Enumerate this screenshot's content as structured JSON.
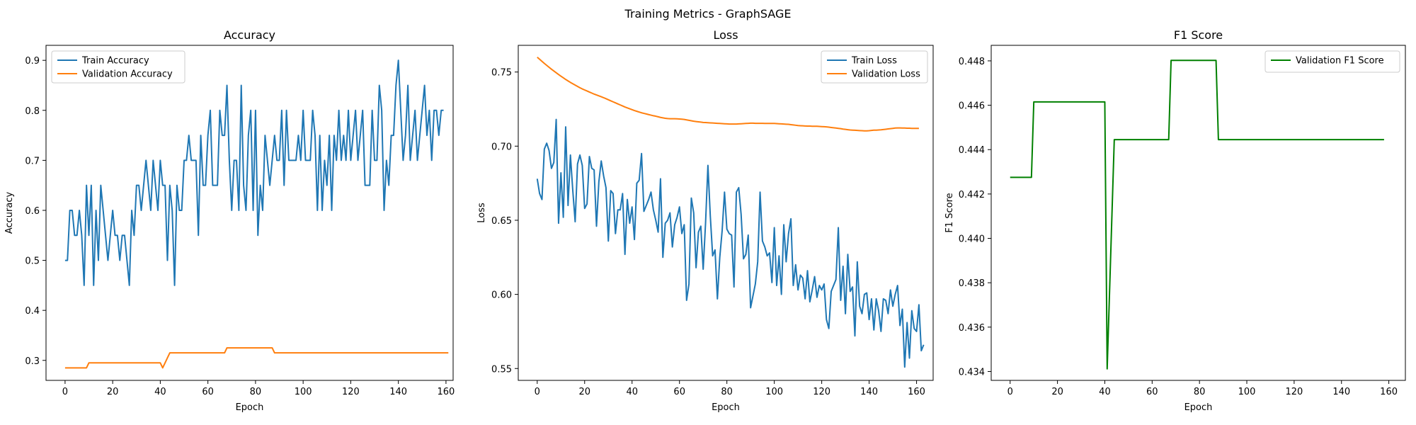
{
  "figure": {
    "suptitle": "Training Metrics - GraphSAGE"
  },
  "chart_data": [
    {
      "type": "line",
      "title": "Accuracy",
      "xlabel": "Epoch",
      "ylabel": "Accuracy",
      "xlim": [
        -8,
        163
      ],
      "ylim": [
        0.26,
        0.93
      ],
      "xticks": [
        0,
        20,
        40,
        60,
        80,
        100,
        120,
        140,
        160
      ],
      "yticks": [
        0.3,
        0.4,
        0.5,
        0.6,
        0.7,
        0.8,
        0.9
      ],
      "ytick_decimals": 1,
      "legend": "top-left",
      "grid": false,
      "series": [
        {
          "name": "Train Accuracy",
          "color": "#1f77b4",
          "values": [
            0.5,
            0.5,
            0.6,
            0.6,
            0.55,
            0.55,
            0.6,
            0.55,
            0.45,
            0.65,
            0.55,
            0.65,
            0.45,
            0.6,
            0.5,
            0.65,
            0.6,
            0.55,
            0.5,
            0.55,
            0.6,
            0.55,
            0.55,
            0.5,
            0.55,
            0.55,
            0.5,
            0.45,
            0.6,
            0.55,
            0.65,
            0.65,
            0.6,
            0.65,
            0.7,
            0.65,
            0.6,
            0.7,
            0.65,
            0.6,
            0.7,
            0.65,
            0.65,
            0.5,
            0.65,
            0.6,
            0.45,
            0.65,
            0.6,
            0.6,
            0.7,
            0.7,
            0.75,
            0.7,
            0.7,
            0.7,
            0.55,
            0.75,
            0.65,
            0.65,
            0.75,
            0.8,
            0.65,
            0.65,
            0.65,
            0.8,
            0.75,
            0.75,
            0.85,
            0.7,
            0.6,
            0.7,
            0.7,
            0.6,
            0.85,
            0.65,
            0.6,
            0.75,
            0.8,
            0.6,
            0.8,
            0.55,
            0.65,
            0.6,
            0.75,
            0.7,
            0.65,
            0.7,
            0.75,
            0.7,
            0.7,
            0.8,
            0.65,
            0.8,
            0.7,
            0.7,
            0.7,
            0.7,
            0.75,
            0.7,
            0.8,
            0.7,
            0.7,
            0.7,
            0.8,
            0.75,
            0.6,
            0.75,
            0.6,
            0.7,
            0.65,
            0.75,
            0.6,
            0.75,
            0.7,
            0.8,
            0.7,
            0.75,
            0.7,
            0.8,
            0.7,
            0.75,
            0.8,
            0.7,
            0.75,
            0.8,
            0.65,
            0.65,
            0.65,
            0.8,
            0.7,
            0.7,
            0.85,
            0.8,
            0.6,
            0.7,
            0.65,
            0.75,
            0.75,
            0.85,
            0.9,
            0.8,
            0.7,
            0.75,
            0.85,
            0.7,
            0.75,
            0.8,
            0.7,
            0.75,
            0.8,
            0.85,
            0.75,
            0.8,
            0.7,
            0.8,
            0.8,
            0.75,
            0.8,
            0.8
          ]
        },
        {
          "name": "Validation Accuracy",
          "color": "#ff7f0e",
          "values": [
            0.285,
            0.285,
            0.285,
            0.285,
            0.285,
            0.285,
            0.285,
            0.285,
            0.285,
            0.285,
            0.295,
            0.295,
            0.295,
            0.295,
            0.295,
            0.295,
            0.295,
            0.295,
            0.295,
            0.295,
            0.295,
            0.295,
            0.295,
            0.295,
            0.295,
            0.295,
            0.295,
            0.295,
            0.295,
            0.295,
            0.295,
            0.295,
            0.295,
            0.295,
            0.295,
            0.295,
            0.295,
            0.295,
            0.295,
            0.295,
            0.295,
            0.285,
            0.295,
            0.305,
            0.315,
            0.315,
            0.315,
            0.315,
            0.315,
            0.315,
            0.315,
            0.315,
            0.315,
            0.315,
            0.315,
            0.315,
            0.315,
            0.315,
            0.315,
            0.315,
            0.315,
            0.315,
            0.315,
            0.315,
            0.315,
            0.315,
            0.315,
            0.315,
            0.325,
            0.325,
            0.325,
            0.325,
            0.325,
            0.325,
            0.325,
            0.325,
            0.325,
            0.325,
            0.325,
            0.325,
            0.325,
            0.325,
            0.325,
            0.325,
            0.325,
            0.325,
            0.325,
            0.325,
            0.315,
            0.315,
            0.315,
            0.315,
            0.315,
            0.315,
            0.315,
            0.315,
            0.315,
            0.315,
            0.315,
            0.315,
            0.315,
            0.315,
            0.315,
            0.315,
            0.315,
            0.315,
            0.315,
            0.315,
            0.315,
            0.315,
            0.315,
            0.315,
            0.315,
            0.315,
            0.315,
            0.315,
            0.315,
            0.315,
            0.315,
            0.315,
            0.315,
            0.315,
            0.315,
            0.315,
            0.315,
            0.315,
            0.315,
            0.315,
            0.315,
            0.315,
            0.315,
            0.315,
            0.315,
            0.315,
            0.315,
            0.315,
            0.315,
            0.315,
            0.315,
            0.315,
            0.315,
            0.315,
            0.315,
            0.315,
            0.315,
            0.315,
            0.315,
            0.315,
            0.315,
            0.315,
            0.315,
            0.315,
            0.315,
            0.315,
            0.315,
            0.315,
            0.315,
            0.315,
            0.315,
            0.315,
            0.315,
            0.315
          ]
        }
      ]
    },
    {
      "type": "line",
      "title": "Loss",
      "xlabel": "Epoch",
      "ylabel": "Loss",
      "xlim": [
        -8,
        167
      ],
      "ylim": [
        0.542,
        0.768
      ],
      "xticks": [
        0,
        20,
        40,
        60,
        80,
        100,
        120,
        140,
        160
      ],
      "yticks": [
        0.55,
        0.6,
        0.65,
        0.7,
        0.75
      ],
      "ytick_decimals": 2,
      "legend": "top-right",
      "grid": false,
      "series": [
        {
          "name": "Train Loss",
          "color": "#1f77b4",
          "values": [
            0.678,
            0.668,
            0.664,
            0.698,
            0.702,
            0.697,
            0.685,
            0.689,
            0.718,
            0.648,
            0.682,
            0.652,
            0.713,
            0.66,
            0.694,
            0.67,
            0.649,
            0.688,
            0.694,
            0.687,
            0.658,
            0.661,
            0.693,
            0.685,
            0.684,
            0.646,
            0.676,
            0.69,
            0.68,
            0.672,
            0.636,
            0.67,
            0.668,
            0.641,
            0.657,
            0.657,
            0.668,
            0.627,
            0.664,
            0.648,
            0.659,
            0.637,
            0.675,
            0.677,
            0.695,
            0.656,
            0.66,
            0.664,
            0.669,
            0.657,
            0.65,
            0.642,
            0.678,
            0.625,
            0.648,
            0.65,
            0.655,
            0.632,
            0.647,
            0.652,
            0.659,
            0.641,
            0.647,
            0.596,
            0.607,
            0.665,
            0.655,
            0.618,
            0.642,
            0.646,
            0.617,
            0.648,
            0.687,
            0.653,
            0.626,
            0.63,
            0.597,
            0.625,
            0.643,
            0.669,
            0.644,
            0.641,
            0.64,
            0.605,
            0.669,
            0.672,
            0.654,
            0.624,
            0.627,
            0.64,
            0.591,
            0.599,
            0.607,
            0.622,
            0.669,
            0.636,
            0.632,
            0.626,
            0.628,
            0.608,
            0.645,
            0.606,
            0.626,
            0.6,
            0.647,
            0.622,
            0.641,
            0.651,
            0.606,
            0.62,
            0.603,
            0.613,
            0.611,
            0.597,
            0.616,
            0.595,
            0.603,
            0.612,
            0.598,
            0.606,
            0.603,
            0.607,
            0.583,
            0.577,
            0.602,
            0.606,
            0.61,
            0.645,
            0.596,
            0.619,
            0.587,
            0.627,
            0.602,
            0.605,
            0.572,
            0.622,
            0.592,
            0.587,
            0.6,
            0.601,
            0.583,
            0.597,
            0.576,
            0.597,
            0.589,
            0.575,
            0.597,
            0.596,
            0.587,
            0.603,
            0.592,
            0.6,
            0.606,
            0.579,
            0.59,
            0.551,
            0.581,
            0.557,
            0.589,
            0.577,
            0.575,
            0.593,
            0.562,
            0.566
          ]
        },
        {
          "name": "Validation Loss",
          "color": "#ff7f0e",
          "values": [
            0.76,
            0.7586,
            0.7572,
            0.7558,
            0.7545,
            0.7532,
            0.7519,
            0.7507,
            0.7495,
            0.7483,
            0.7472,
            0.7461,
            0.745,
            0.744,
            0.743,
            0.7421,
            0.7412,
            0.7403,
            0.7394,
            0.7386,
            0.7379,
            0.7372,
            0.7365,
            0.7358,
            0.7351,
            0.7345,
            0.7339,
            0.7333,
            0.7327,
            0.732,
            0.7313,
            0.7306,
            0.7299,
            0.7292,
            0.7285,
            0.7278,
            0.7271,
            0.7264,
            0.7258,
            0.7252,
            0.7246,
            0.724,
            0.7235,
            0.723,
            0.7225,
            0.7221,
            0.7217,
            0.7213,
            0.7209,
            0.7205,
            0.7202,
            0.7198,
            0.7194,
            0.7191,
            0.7188,
            0.7186,
            0.7185,
            0.7185,
            0.7185,
            0.7184,
            0.7183,
            0.7182,
            0.718,
            0.7177,
            0.7174,
            0.7171,
            0.7168,
            0.7166,
            0.7164,
            0.7162,
            0.716,
            0.7159,
            0.7158,
            0.7157,
            0.7156,
            0.7155,
            0.7154,
            0.7153,
            0.7152,
            0.7151,
            0.715,
            0.7149,
            0.7149,
            0.7149,
            0.7149,
            0.715,
            0.7151,
            0.7152,
            0.7153,
            0.7154,
            0.7155,
            0.7155,
            0.7154,
            0.7154,
            0.7154,
            0.7154,
            0.7153,
            0.7153,
            0.7153,
            0.7153,
            0.7153,
            0.7152,
            0.7151,
            0.715,
            0.7149,
            0.7148,
            0.7147,
            0.7145,
            0.7143,
            0.7141,
            0.7139,
            0.7138,
            0.7137,
            0.7136,
            0.7135,
            0.7135,
            0.7134,
            0.7134,
            0.7134,
            0.7133,
            0.7132,
            0.7131,
            0.713,
            0.7128,
            0.7126,
            0.7124,
            0.7122,
            0.712,
            0.7118,
            0.7115,
            0.7113,
            0.7111,
            0.7109,
            0.7108,
            0.7107,
            0.7106,
            0.7105,
            0.7104,
            0.7103,
            0.7103,
            0.7104,
            0.7106,
            0.7108,
            0.7108,
            0.7109,
            0.711,
            0.7112,
            0.7114,
            0.7116,
            0.7118,
            0.712,
            0.7122,
            0.7123,
            0.7123,
            0.7122,
            0.7122,
            0.7121,
            0.7121,
            0.712,
            0.712,
            0.712,
            0.712
          ]
        }
      ]
    },
    {
      "type": "line",
      "title": "F1 Score",
      "xlabel": "Epoch",
      "ylabel": "F1 Score",
      "xlim": [
        -8,
        167
      ],
      "ylim": [
        0.4336,
        0.4487
      ],
      "xticks": [
        0,
        20,
        40,
        60,
        80,
        100,
        120,
        140,
        160
      ],
      "yticks": [
        0.434,
        0.436,
        0.438,
        0.44,
        0.442,
        0.444,
        0.446,
        0.448
      ],
      "ytick_decimals": 3,
      "legend": "top-right",
      "grid": false,
      "series": [
        {
          "name": "Validation F1 Score",
          "color": "#008000",
          "x": [
            0,
            9,
            10,
            40,
            41,
            44,
            67,
            68,
            87,
            88,
            158
          ],
          "values": [
            0.44275,
            0.44275,
            0.44615,
            0.44615,
            0.43412,
            0.44445,
            0.44445,
            0.44802,
            0.44802,
            0.44445,
            0.44445
          ]
        }
      ]
    }
  ]
}
